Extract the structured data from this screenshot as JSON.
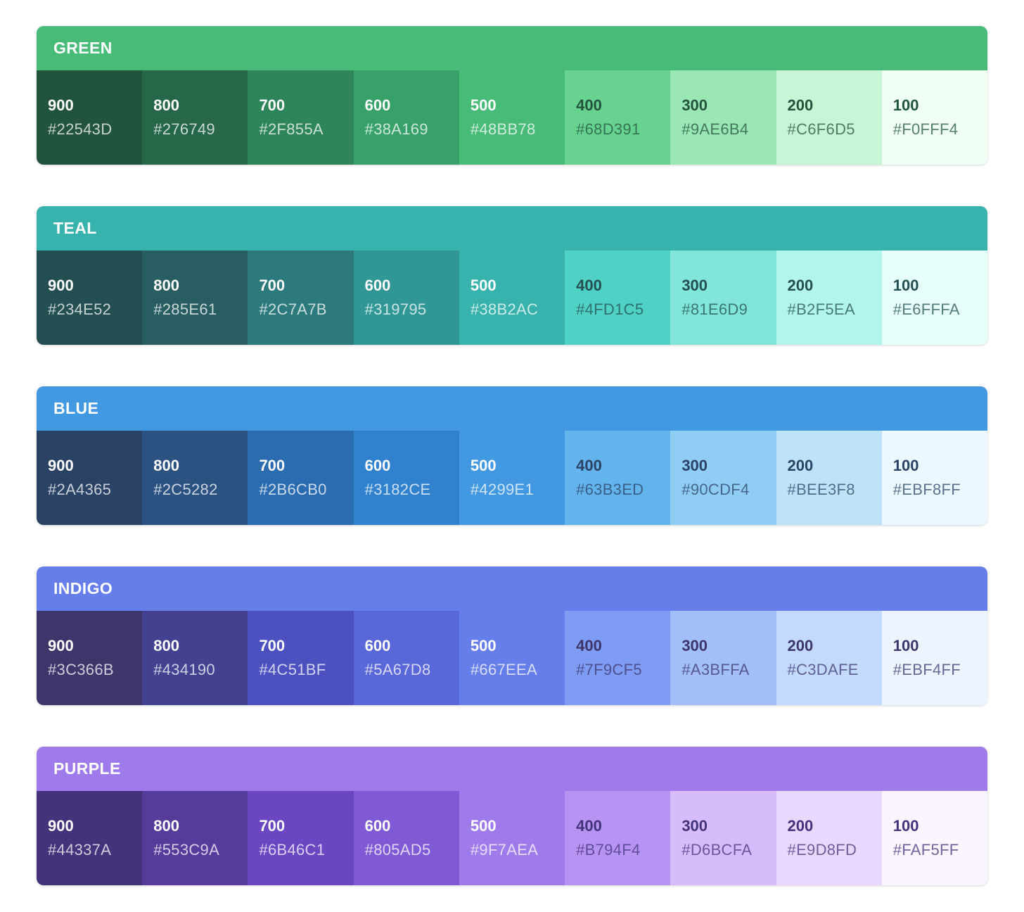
{
  "page": {
    "background": "#FFFFFF",
    "text_light": "#FFFFFF"
  },
  "palettes": [
    {
      "name": "GREEN",
      "header_color": "#48BB78",
      "text_dark": "#22543D",
      "swatches": [
        {
          "shade": "900",
          "hex": "#22543D"
        },
        {
          "shade": "800",
          "hex": "#276749"
        },
        {
          "shade": "700",
          "hex": "#2F855A"
        },
        {
          "shade": "600",
          "hex": "#38A169"
        },
        {
          "shade": "500",
          "hex": "#48BB78"
        },
        {
          "shade": "400",
          "hex": "#68D391"
        },
        {
          "shade": "300",
          "hex": "#9AE6B4"
        },
        {
          "shade": "200",
          "hex": "#C6F6D5"
        },
        {
          "shade": "100",
          "hex": "#F0FFF4"
        }
      ]
    },
    {
      "name": "TEAL",
      "header_color": "#38B2AC",
      "text_dark": "#234E52",
      "swatches": [
        {
          "shade": "900",
          "hex": "#234E52"
        },
        {
          "shade": "800",
          "hex": "#285E61"
        },
        {
          "shade": "700",
          "hex": "#2C7A7B"
        },
        {
          "shade": "600",
          "hex": "#319795"
        },
        {
          "shade": "500",
          "hex": "#38B2AC"
        },
        {
          "shade": "400",
          "hex": "#4FD1C5"
        },
        {
          "shade": "300",
          "hex": "#81E6D9"
        },
        {
          "shade": "200",
          "hex": "#B2F5EA"
        },
        {
          "shade": "100",
          "hex": "#E6FFFA"
        }
      ]
    },
    {
      "name": "BLUE",
      "header_color": "#4299E1",
      "text_dark": "#2A4365",
      "swatches": [
        {
          "shade": "900",
          "hex": "#2A4365"
        },
        {
          "shade": "800",
          "hex": "#2C5282"
        },
        {
          "shade": "700",
          "hex": "#2B6CB0"
        },
        {
          "shade": "600",
          "hex": "#3182CE"
        },
        {
          "shade": "500",
          "hex": "#4299E1"
        },
        {
          "shade": "400",
          "hex": "#63B3ED"
        },
        {
          "shade": "300",
          "hex": "#90CDF4"
        },
        {
          "shade": "200",
          "hex": "#BEE3F8"
        },
        {
          "shade": "100",
          "hex": "#EBF8FF"
        }
      ]
    },
    {
      "name": "INDIGO",
      "header_color": "#667EEA",
      "text_dark": "#3C366B",
      "swatches": [
        {
          "shade": "900",
          "hex": "#3C366B"
        },
        {
          "shade": "800",
          "hex": "#434190"
        },
        {
          "shade": "700",
          "hex": "#4C51BF"
        },
        {
          "shade": "600",
          "hex": "#5A67D8"
        },
        {
          "shade": "500",
          "hex": "#667EEA"
        },
        {
          "shade": "400",
          "hex": "#7F9CF5"
        },
        {
          "shade": "300",
          "hex": "#A3BFFA"
        },
        {
          "shade": "200",
          "hex": "#C3DAFE"
        },
        {
          "shade": "100",
          "hex": "#EBF4FF"
        }
      ]
    },
    {
      "name": "PURPLE",
      "header_color": "#9F7AEA",
      "text_dark": "#44337A",
      "swatches": [
        {
          "shade": "900",
          "hex": "#44337A"
        },
        {
          "shade": "800",
          "hex": "#553C9A"
        },
        {
          "shade": "700",
          "hex": "#6B46C1"
        },
        {
          "shade": "600",
          "hex": "#805AD5"
        },
        {
          "shade": "500",
          "hex": "#9F7AEA"
        },
        {
          "shade": "400",
          "hex": "#B794F4"
        },
        {
          "shade": "300",
          "hex": "#D6BCFA"
        },
        {
          "shade": "200",
          "hex": "#E9D8FD"
        },
        {
          "shade": "100",
          "hex": "#FAF5FF"
        }
      ]
    }
  ]
}
